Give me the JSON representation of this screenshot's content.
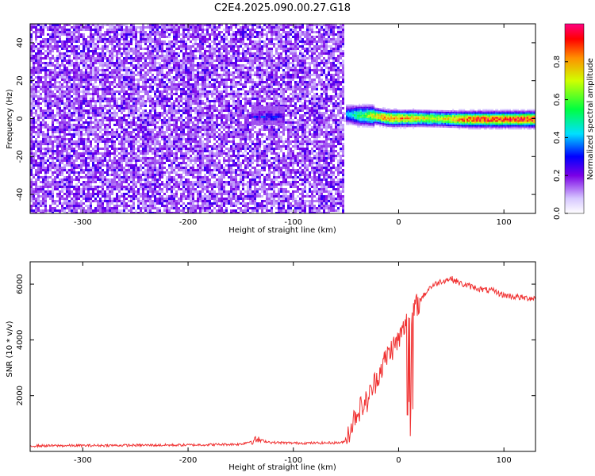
{
  "title": "C2E4.2025.090.00.27.G18",
  "chart_data": [
    {
      "type": "heatmap",
      "xlabel": "Height of straight line (km)",
      "ylabel": "Frequency (Hz)",
      "xlim": [
        -350,
        130
      ],
      "ylim": [
        -50,
        50
      ],
      "xticks": [
        -300,
        -200,
        -100,
        0,
        100
      ],
      "yticks": [
        -40,
        -20,
        0,
        20,
        40
      ],
      "noise_region_x": [
        -350,
        -52
      ],
      "signal_band": [
        {
          "x": -50,
          "y": 2.5,
          "amp": 0.38
        },
        {
          "x": -45,
          "y": 2.5,
          "amp": 0.42
        },
        {
          "x": -40,
          "y": 2.0,
          "amp": 0.55
        },
        {
          "x": -30,
          "y": 2.0,
          "amp": 0.62
        },
        {
          "x": -20,
          "y": 1.5,
          "amp": 0.75
        },
        {
          "x": -10,
          "y": 0.5,
          "amp": 0.85
        },
        {
          "x": 0,
          "y": 0.5,
          "amp": 0.82
        },
        {
          "x": 10,
          "y": 0.5,
          "amp": 0.8
        },
        {
          "x": 20,
          "y": 0.5,
          "amp": 0.72
        },
        {
          "x": 40,
          "y": 0.3,
          "amp": 0.7
        },
        {
          "x": 60,
          "y": 0.0,
          "amp": 0.85
        },
        {
          "x": 80,
          "y": 0.0,
          "amp": 0.9
        },
        {
          "x": 100,
          "y": 0.0,
          "amp": 0.9
        },
        {
          "x": 120,
          "y": 0.0,
          "amp": 0.92
        },
        {
          "x": 130,
          "y": 0.0,
          "amp": 0.92
        }
      ],
      "blob": {
        "x": [
          -140,
          -110
        ],
        "y": 1.5,
        "amp": 0.3
      },
      "colorbar": {
        "label": "Normalized spectral amplitude",
        "ticks": [
          "0.0",
          "0.2",
          "0.4",
          "0.6",
          "0.8"
        ],
        "range": [
          0,
          1
        ]
      }
    },
    {
      "type": "line",
      "xlabel": "Height of straight line (km)",
      "ylabel": "SNR (10 * v/v)",
      "xlim": [
        -350,
        130
      ],
      "ylim": [
        0,
        6800
      ],
      "xticks": [
        -300,
        -200,
        -100,
        0,
        100
      ],
      "yticks": [
        2000,
        4000,
        6000
      ],
      "color": "#f03030",
      "points": [
        [
          -350,
          200
        ],
        [
          -300,
          210
        ],
        [
          -250,
          220
        ],
        [
          -200,
          230
        ],
        [
          -150,
          260
        ],
        [
          -135,
          420
        ],
        [
          -120,
          320
        ],
        [
          -100,
          300
        ],
        [
          -80,
          300
        ],
        [
          -60,
          310
        ],
        [
          -52,
          320
        ],
        [
          -45,
          900
        ],
        [
          -40,
          1400
        ],
        [
          -30,
          1800
        ],
        [
          -20,
          2700
        ],
        [
          -10,
          3500
        ],
        [
          0,
          4000
        ],
        [
          10,
          4800
        ],
        [
          20,
          5400
        ],
        [
          30,
          5900
        ],
        [
          40,
          6100
        ],
        [
          50,
          6200
        ],
        [
          60,
          6000
        ],
        [
          70,
          5900
        ],
        [
          80,
          5800
        ],
        [
          90,
          5750
        ],
        [
          100,
          5600
        ],
        [
          110,
          5550
        ],
        [
          120,
          5500
        ],
        [
          130,
          5500
        ]
      ]
    }
  ]
}
